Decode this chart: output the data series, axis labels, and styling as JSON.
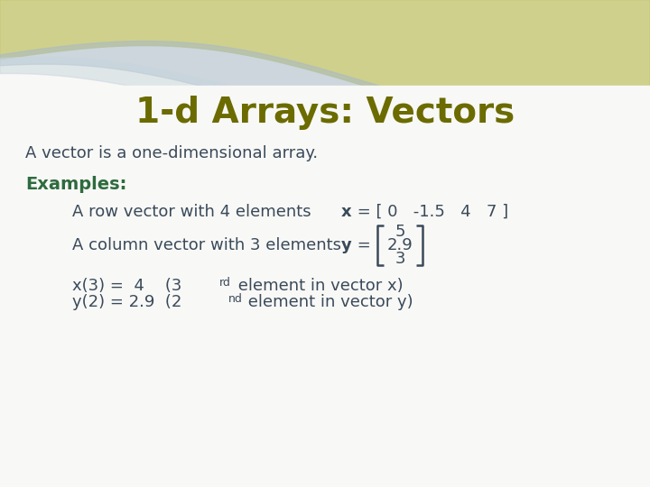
{
  "title": "1-d Arrays: Vectors",
  "title_color": "#6b6b00",
  "title_fontsize": 28,
  "body_color": "#3a4a5a",
  "body_fontsize": 13,
  "examples_color": "#2e6b3e",
  "examples_fontsize": 14,
  "bg_color": "#f8f8f6",
  "wave_olive": "#c8ca7a",
  "wave_blue": "#a8bac8",
  "wave_lightblue": "#c8d5dc",
  "bracket_color": "#3a4a5a",
  "col_vector_values": [
    "5",
    "2.9",
    "3"
  ]
}
